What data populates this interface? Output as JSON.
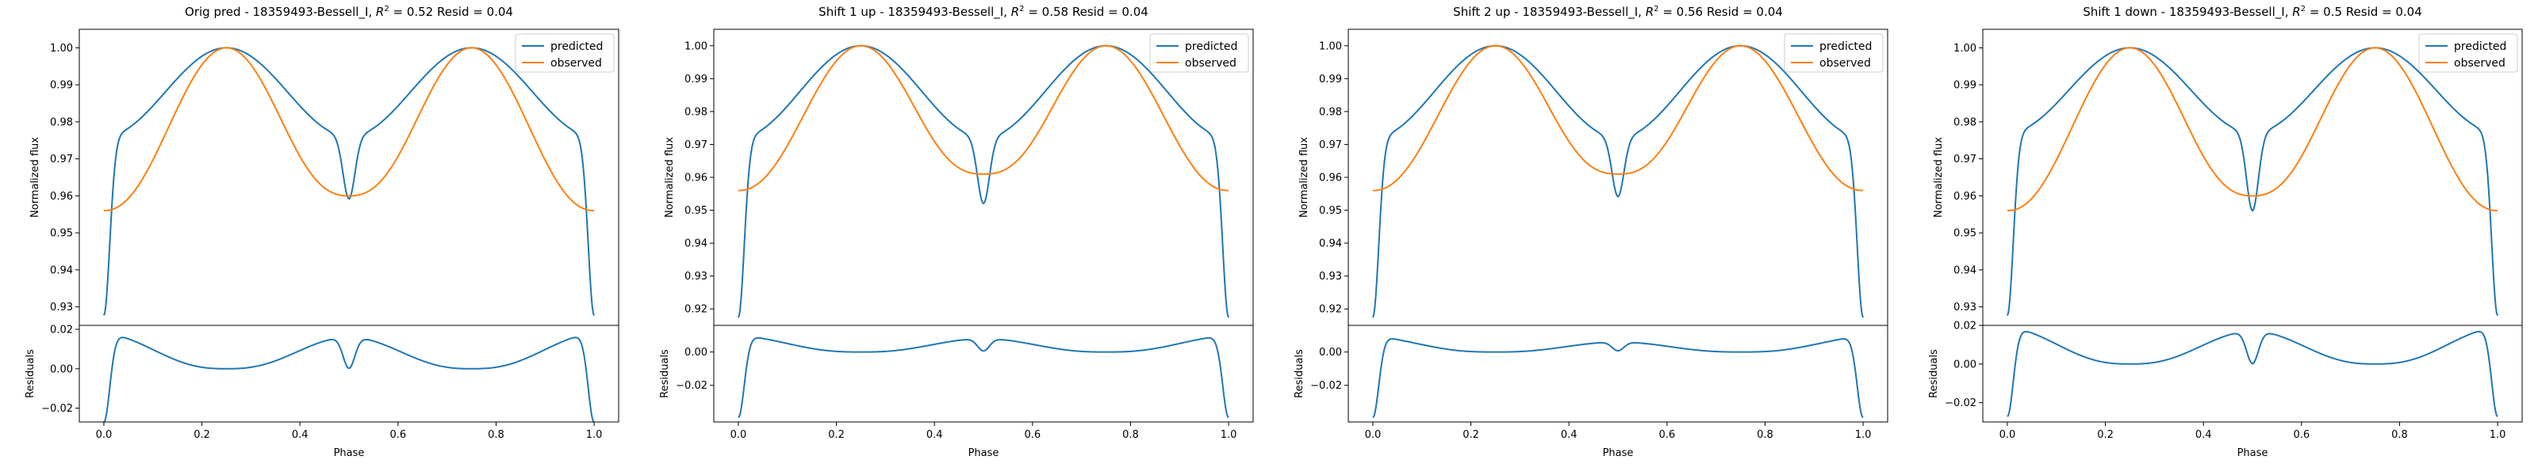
{
  "chart_data": [
    {
      "type": "line",
      "title": "Orig pred - 18359493-Bessell_I, $R^2 = 0.52$ Resid = 0.04",
      "title_parts": {
        "pre": "Orig pred - 18359493-Bessell_I, ",
        "r2_symbol": "R",
        "r2_sup": "2",
        "r2_rest": " = 0.52 Resid = 0.04"
      },
      "xlabel": "Phase",
      "xticks": [
        "0.0",
        "0.2",
        "0.4",
        "0.6",
        "0.8",
        "1.0"
      ],
      "xlim": [
        -0.05,
        1.05
      ],
      "top": {
        "ylabel": "Normalized flux",
        "ylim": [
          0.925,
          1.005
        ],
        "yticks": [
          "0.93",
          "0.94",
          "0.95",
          "0.96",
          "0.97",
          "0.98",
          "0.99",
          "1.00"
        ],
        "legend": [
          "predicted",
          "observed"
        ],
        "legend_position": "top-right",
        "predicted": {
          "base": 0.976,
          "amp": 0.024,
          "dip1": 0.96,
          "dip2": 0.96,
          "edge": 0.93
        },
        "observed": {
          "min": 0.956,
          "mid": 0.96
        }
      },
      "bottom": {
        "ylabel": "Residuals",
        "ylim": [
          -0.027,
          0.022
        ],
        "yticks": [
          "−0.02",
          "0.00",
          "0.02"
        ],
        "resid": {
          "edgeTop": 0.018,
          "mid": 0.0,
          "centre": 0.001,
          "dipMax": 0.016,
          "edgeBottom": -0.025
        }
      }
    },
    {
      "type": "line",
      "title": "Shift 1 up - 18359493-Bessell_I, $R^2 = 0.58$ Resid = 0.04",
      "title_parts": {
        "pre": "Shift 1 up - 18359493-Bessell_I, ",
        "r2_symbol": "R",
        "r2_sup": "2",
        "r2_rest": " = 0.58 Resid = 0.04"
      },
      "xlabel": "Phase",
      "xticks": [
        "0.0",
        "0.2",
        "0.4",
        "0.6",
        "0.8",
        "1.0"
      ],
      "xlim": [
        -0.05,
        1.05
      ],
      "top": {
        "ylabel": "Normalized flux",
        "ylim": [
          0.915,
          1.005
        ],
        "yticks": [
          "0.92",
          "0.93",
          "0.94",
          "0.95",
          "0.96",
          "0.97",
          "0.98",
          "0.99",
          "1.00"
        ],
        "legend": [
          "predicted",
          "observed"
        ],
        "legend_position": "top-right",
        "predicted": {
          "base": 0.972,
          "amp": 0.028,
          "dip1": 0.953,
          "dip2": 0.953,
          "edge": 0.92
        },
        "observed": {
          "min": 0.956,
          "mid": 0.961
        }
      },
      "bottom": {
        "ylabel": "Residuals",
        "ylim": [
          -0.042,
          0.016
        ],
        "yticks": [
          "−0.02",
          "0.00"
        ],
        "resid": {
          "edgeTop": 0.01,
          "mid": 0.0,
          "centre": 0.001,
          "dipMax": 0.008,
          "edgeBottom": -0.037
        }
      }
    },
    {
      "type": "line",
      "title": "Shift 2 up - 18359493-Bessell_I, $R^2 = 0.56$ Resid = 0.04",
      "title_parts": {
        "pre": "Shift 2 up - 18359493-Bessell_I, ",
        "r2_symbol": "R",
        "r2_sup": "2",
        "r2_rest": " = 0.56 Resid = 0.04"
      },
      "xlabel": "Phase",
      "xticks": [
        "0.0",
        "0.2",
        "0.4",
        "0.6",
        "0.8",
        "1.0"
      ],
      "xlim": [
        -0.05,
        1.05
      ],
      "top": {
        "ylabel": "Normalized flux",
        "ylim": [
          0.915,
          1.005
        ],
        "yticks": [
          "0.92",
          "0.93",
          "0.94",
          "0.95",
          "0.96",
          "0.97",
          "0.98",
          "0.99",
          "1.00"
        ],
        "legend": [
          "predicted",
          "observed"
        ],
        "legend_position": "top-right",
        "predicted": {
          "base": 0.972,
          "amp": 0.028,
          "dip1": 0.955,
          "dip2": 0.955,
          "edge": 0.92
        },
        "observed": {
          "min": 0.956,
          "mid": 0.961
        }
      },
      "bottom": {
        "ylabel": "Residuals",
        "ylim": [
          -0.042,
          0.016
        ],
        "yticks": [
          "−0.02",
          "0.00"
        ],
        "resid": {
          "edgeTop": 0.01,
          "mid": 0.0,
          "centre": 0.001,
          "dipMax": 0.006,
          "edgeBottom": -0.037
        }
      }
    },
    {
      "type": "line",
      "title": "Shift 1 down - 18359493-Bessell_I, $R^2 = 0.5$ Resid = 0.04",
      "title_parts": {
        "pre": "Shift 1 down - 18359493-Bessell_I, ",
        "r2_symbol": "R",
        "r2_sup": "2",
        "r2_rest": " = 0.5 Resid = 0.04"
      },
      "xlabel": "Phase",
      "xticks": [
        "0.0",
        "0.2",
        "0.4",
        "0.6",
        "0.8",
        "1.0"
      ],
      "xlim": [
        -0.05,
        1.05
      ],
      "top": {
        "ylabel": "Normalized flux",
        "ylim": [
          0.925,
          1.005
        ],
        "yticks": [
          "0.93",
          "0.94",
          "0.95",
          "0.96",
          "0.97",
          "0.98",
          "0.99",
          "1.00"
        ],
        "legend": [
          "predicted",
          "observed"
        ],
        "legend_position": "top-right",
        "predicted": {
          "base": 0.977,
          "amp": 0.023,
          "dip1": 0.957,
          "dip2": 0.957,
          "edge": 0.93
        },
        "observed": {
          "min": 0.956,
          "mid": 0.96
        }
      },
      "bottom": {
        "ylabel": "Residuals",
        "ylim": [
          -0.03,
          0.02
        ],
        "yticks": [
          "−0.02",
          "0.00",
          "0.02"
        ],
        "resid": {
          "edgeTop": 0.019,
          "mid": 0.0,
          "centre": 0.001,
          "dipMax": 0.017,
          "edgeBottom": -0.025
        }
      }
    }
  ],
  "colors": {
    "predicted": "#1f77b4",
    "observed": "#ff7f0e",
    "axes": "#000000"
  }
}
